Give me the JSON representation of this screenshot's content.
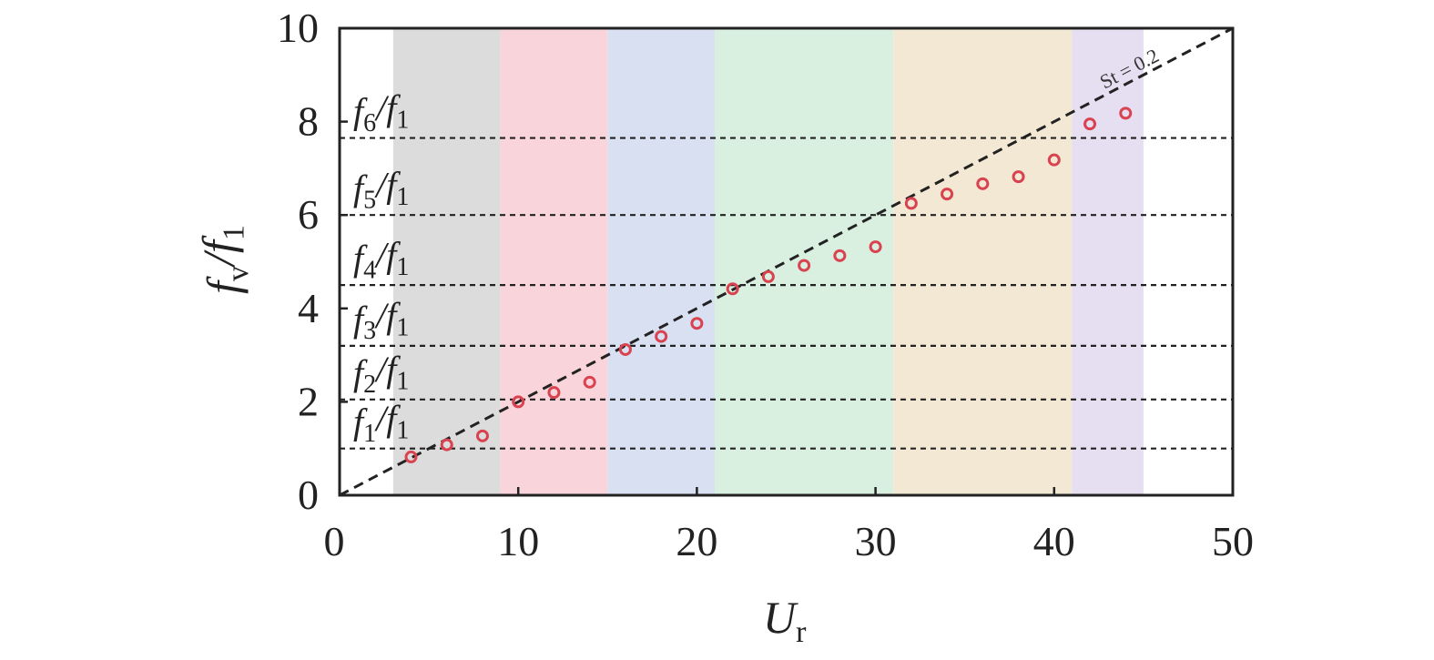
{
  "chart_data": {
    "type": "scatter",
    "xlabel": "U_r",
    "ylabel": "f_v/f_1",
    "xlim": [
      0,
      50
    ],
    "ylim": [
      0,
      10
    ],
    "x_ticks": [
      0,
      10,
      20,
      30,
      40,
      50
    ],
    "y_ticks": [
      0,
      2,
      4,
      6,
      8,
      10
    ],
    "grid": false,
    "marker": {
      "shape": "open-circle",
      "color": "#d9424f"
    },
    "series": [
      {
        "x": [
          4,
          6,
          8,
          10,
          12,
          14,
          16,
          18,
          20,
          22,
          24,
          26,
          28,
          30,
          32,
          34,
          36,
          38,
          40,
          42,
          44
        ],
        "y": [
          0.82,
          1.08,
          1.27,
          2.0,
          2.2,
          2.42,
          3.12,
          3.4,
          3.68,
          4.42,
          4.68,
          4.92,
          5.13,
          5.32,
          6.25,
          6.45,
          6.67,
          6.82,
          7.18,
          7.95,
          8.18
        ]
      }
    ],
    "reference_line": {
      "label": "St = 0.2",
      "slope": 0.2,
      "style": "dashed",
      "color": "#222222"
    },
    "harmonic_lines": [
      {
        "label": "f_1/f_1",
        "y": 1.0
      },
      {
        "label": "f_2/f_1",
        "y": 2.05
      },
      {
        "label": "f_3/f_1",
        "y": 3.2
      },
      {
        "label": "f_4/f_1",
        "y": 4.5
      },
      {
        "label": "f_5/f_1",
        "y": 6.0
      },
      {
        "label": "f_6/f_1",
        "y": 7.65
      }
    ],
    "regions": [
      {
        "x0": 3.0,
        "x1": 9.0,
        "color": "#dcdcdc"
      },
      {
        "x0": 9.0,
        "x1": 15.0,
        "color": "#f9d5db"
      },
      {
        "x0": 15.0,
        "x1": 21.0,
        "color": "#d9e0f2"
      },
      {
        "x0": 21.0,
        "x1": 31.0,
        "color": "#d9efe0"
      },
      {
        "x0": 31.0,
        "x1": 41.0,
        "color": "#f2e8d3"
      },
      {
        "x0": 41.0,
        "x1": 45.0,
        "color": "#e6def1"
      }
    ]
  }
}
